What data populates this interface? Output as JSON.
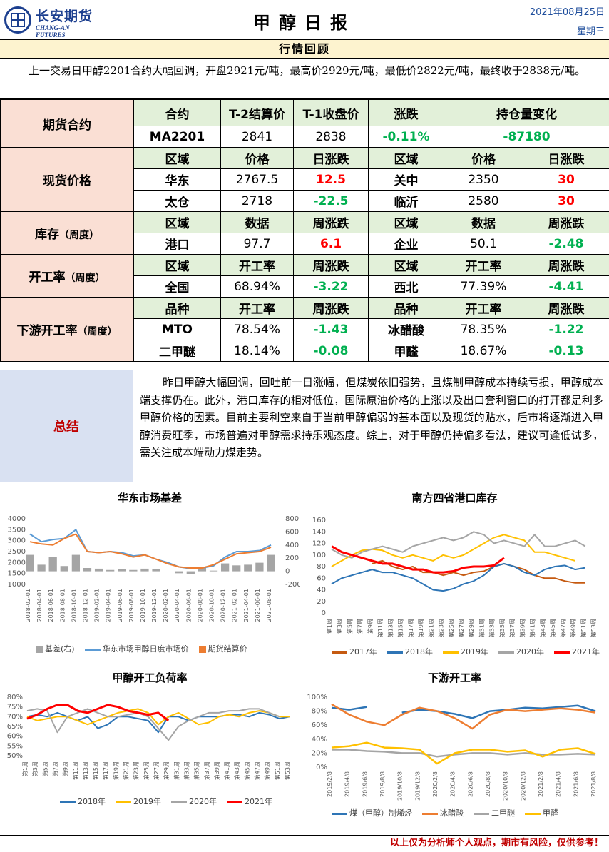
{
  "header": {
    "company_cn": "长安期货",
    "company_en": "CHANG-AN FUTURES",
    "title": "甲醇日报",
    "date": "2021年08月25日",
    "weekday": "星期三"
  },
  "review": {
    "heading": "行情回顾",
    "text": "上一交易日甲醇2201合约大幅回调，开盘2921元/吨，最高价2929元/吨，最低价2822元/吨，最终收于2838元/吨。"
  },
  "futures": {
    "label": "期货合约",
    "headers": [
      "合约",
      "T-2结算价",
      "T-1收盘价",
      "涨跌",
      "持仓量变化"
    ],
    "row": [
      "MA2201",
      "2841",
      "2838",
      "-0.11%",
      "-87180"
    ]
  },
  "spot": {
    "label": "现货价格",
    "headers": [
      "区域",
      "价格",
      "日涨跌",
      "区域",
      "价格",
      "日涨跌"
    ],
    "rows": [
      [
        "华东",
        "2767.5",
        "12.5",
        "关中",
        "2350",
        "30"
      ],
      [
        "太仓",
        "2718",
        "-22.5",
        "临沂",
        "2580",
        "30"
      ]
    ]
  },
  "inventory": {
    "label": "库存",
    "label_small": "（周度）",
    "headers": [
      "区域",
      "数据",
      "周涨跌",
      "区域",
      "数据",
      "周涨跌"
    ],
    "row": [
      "港口",
      "97.7",
      "6.1",
      "企业",
      "50.1",
      "-2.48"
    ]
  },
  "operating": {
    "label": "开工率",
    "label_small": "（周度）",
    "headers": [
      "区域",
      "开工率",
      "周涨跌",
      "区域",
      "开工率",
      "周涨跌"
    ],
    "row": [
      "全国",
      "68.94%",
      "-3.22",
      "西北",
      "77.39%",
      "-4.41"
    ]
  },
  "downstream": {
    "label": "下游开工率",
    "label_small": "（周度）",
    "headers": [
      "品种",
      "开工率",
      "周涨跌",
      "品种",
      "开工率",
      "周涨跌"
    ],
    "rows": [
      [
        "MTO",
        "78.54%",
        "-1.43",
        "冰醋酸",
        "78.35%",
        "-1.22"
      ],
      [
        "二甲醚",
        "18.14%",
        "-0.08",
        "甲醛",
        "18.67%",
        "-0.13"
      ]
    ]
  },
  "summary": {
    "label": "总结",
    "text": "昨日甲醇大幅回调，回吐前一日涨幅，但煤炭依旧强势，且煤制甲醇成本持续亏损，甲醇成本端支撑仍在。此外，港口库存的相对低位，国际原油价格的上涨以及出口套利窗口的打开都是利多甲醇价格的因素。目前主要利空来自于当前甲醇偏弱的基本面以及现货的贴水，后市将逐渐进入甲醇消费旺季，市场普遍对甲醇需求持乐观态度。综上，对于甲醇仍持偏多看法，建议可逢低试多，需关注成本端动力煤走势。"
  },
  "footer": "以上仅为分析师个人观点，期市有风险，仅供参考！",
  "colors": {
    "c2017": "#c55a11",
    "c2018": "#2e75b6",
    "c2019": "#ffc000",
    "c2020": "#a5a5a5",
    "c2021": "#ff0000",
    "basis": "#a5a5a5",
    "spot_line": "#5b9bd5",
    "fut_line": "#ed7d31"
  },
  "chart_data": [
    {
      "type": "line",
      "title": "华东市场基差",
      "yticks_left": [
        "4000",
        "3500",
        "3000",
        "2500",
        "2000",
        "1500",
        "1000"
      ],
      "yticks_right": [
        "800",
        "600",
        "400",
        "200",
        "0",
        "-200"
      ],
      "ylim_left": [
        1000,
        4000
      ],
      "ylim_right": [
        -200,
        800
      ],
      "x": [
        "2018-02-01",
        "2018-04-01",
        "2018-06-01",
        "2018-08-01",
        "2018-10-01",
        "2018-12-01",
        "2019-02-01",
        "2019-04-01",
        "2019-06-01",
        "2019-08-01",
        "2019-10-01",
        "2019-12-01",
        "2020-02-01",
        "2020-04-01",
        "2020-06-01",
        "2020-08-01",
        "2020-10-01",
        "2020-12-01",
        "2021-02-01",
        "2021-04-01",
        "2021-06-01",
        "2021-08-01"
      ],
      "series": [
        {
          "name": "基差(右)",
          "values": [
            250,
            100,
            220,
            80,
            250,
            50,
            40,
            20,
            30,
            20,
            40,
            30,
            0,
            -30,
            -40,
            50,
            10,
            120,
            90,
            100,
            130,
            250
          ]
        },
        {
          "name": "华东市场甲醇日度市场价",
          "values": [
            3300,
            2950,
            3050,
            3100,
            3500,
            2500,
            2450,
            2500,
            2450,
            2300,
            2350,
            2150,
            2000,
            1800,
            1720,
            1750,
            1850,
            2250,
            2500,
            2500,
            2550,
            2800
          ]
        },
        {
          "name": "期货结算价",
          "values": [
            2950,
            2850,
            2800,
            3100,
            3300,
            2500,
            2450,
            2500,
            2400,
            2250,
            2350,
            2150,
            1950,
            1800,
            1750,
            1750,
            1900,
            2150,
            2400,
            2450,
            2500,
            2700
          ]
        }
      ],
      "legend": "bottom"
    },
    {
      "type": "line",
      "title": "南方四省港口库存",
      "yticks": [
        "160",
        "140",
        "120",
        "100",
        "80",
        "60",
        "40",
        "20",
        "0"
      ],
      "ylim": [
        0,
        160
      ],
      "x": [
        "第1周",
        "第3周",
        "第5周",
        "第7周",
        "第9周",
        "第11周",
        "第13周",
        "第15周",
        "第17周",
        "第19周",
        "第21周",
        "第23周",
        "第25周",
        "第27周",
        "第29周",
        "第31周",
        "第33周",
        "第35周",
        "第37周",
        "第39周",
        "第41周",
        "第43周",
        "第45周",
        "第47周",
        "第49周",
        "第51周",
        "第53周"
      ],
      "series": [
        {
          "name": "2017年",
          "values": [
            null,
            null,
            null,
            null,
            85,
            90,
            80,
            75,
            80,
            70,
            70,
            65,
            70,
            65,
            70,
            72,
            80,
            85,
            80,
            75,
            65,
            60,
            60,
            55,
            52,
            52,
            null
          ]
        },
        {
          "name": "2018年",
          "values": [
            50,
            60,
            65,
            70,
            75,
            70,
            70,
            65,
            60,
            50,
            40,
            38,
            42,
            50,
            55,
            65,
            80,
            85,
            80,
            70,
            65,
            75,
            80,
            82,
            75,
            78,
            null
          ]
        },
        {
          "name": "2019年",
          "values": [
            80,
            90,
            100,
            108,
            110,
            108,
            100,
            95,
            100,
            95,
            90,
            100,
            95,
            100,
            110,
            120,
            130,
            135,
            130,
            125,
            105,
            105,
            100,
            95,
            90,
            null,
            null
          ]
        },
        {
          "name": "2020年",
          "values": [
            110,
            100,
            95,
            105,
            110,
            115,
            110,
            105,
            115,
            120,
            125,
            130,
            125,
            130,
            140,
            135,
            120,
            125,
            120,
            115,
            135,
            115,
            115,
            120,
            125,
            115,
            null
          ]
        },
        {
          "name": "2021年",
          "values": [
            115,
            105,
            100,
            95,
            90,
            85,
            85,
            80,
            75,
            75,
            70,
            70,
            72,
            78,
            80,
            80,
            82,
            95,
            null,
            null,
            null,
            null,
            null,
            null,
            null,
            null,
            null
          ]
        }
      ],
      "legend": "bottom"
    },
    {
      "type": "line",
      "title": "甲醇开工负荷率",
      "yticks": [
        "80%",
        "75%",
        "70%",
        "65%",
        "60%",
        "55%",
        "50%"
      ],
      "ylim": [
        50,
        80
      ],
      "x": [
        "第1周",
        "第3周",
        "第5周",
        "第7周",
        "第9周",
        "第11周",
        "第13周",
        "第15周",
        "第17周",
        "第19周",
        "第21周",
        "第23周",
        "第25周",
        "第27周",
        "第29周",
        "第31周",
        "第33周",
        "第35周",
        "第37周",
        "第39周",
        "第41周",
        "第43周",
        "第45周",
        "第47周",
        "第49周",
        "第51周",
        "第53周"
      ],
      "series": [
        {
          "name": "2018年",
          "values": [
            70,
            71,
            70,
            72,
            70,
            68,
            70,
            64,
            66,
            70,
            70,
            69,
            68,
            62,
            70,
            70,
            68,
            70,
            70,
            70,
            71,
            71,
            70,
            72,
            71,
            69,
            70
          ]
        },
        {
          "name": "2019年",
          "values": [
            70,
            68,
            69,
            70,
            70,
            68,
            66,
            68,
            70,
            72,
            73,
            74,
            72,
            66,
            70,
            72,
            69,
            66,
            67,
            70,
            71,
            70,
            72,
            73,
            72,
            70,
            70
          ]
        },
        {
          "name": "2020年",
          "values": [
            73,
            74,
            73,
            62,
            70,
            72,
            74,
            72,
            70,
            70,
            71,
            72,
            70,
            64,
            58,
            65,
            68,
            70,
            72,
            72,
            73,
            73,
            74,
            74,
            72,
            70,
            null
          ]
        },
        {
          "name": "2021年",
          "values": [
            69,
            71,
            74,
            76,
            76,
            73,
            72,
            74,
            76,
            75,
            73,
            72,
            71,
            72,
            68,
            null,
            null,
            null,
            null,
            null,
            null,
            null,
            null,
            null,
            null,
            null,
            null
          ]
        }
      ],
      "legend": "bottom"
    },
    {
      "type": "line",
      "title": "下游开工率",
      "yticks": [
        "100%",
        "80%",
        "60%",
        "40%",
        "20%",
        "0%"
      ],
      "ylim": [
        0,
        100
      ],
      "x": [
        "2019/2/8",
        "2019/4/8",
        "2019/6/8",
        "2019/8/8",
        "2019/10/8",
        "2019/12/8",
        "2020/2/8",
        "2020/4/8",
        "2020/6/8",
        "2020/8/8",
        "2020/10/8",
        "2020/12/8",
        "2021/2/8",
        "2021/4/8",
        "2021/6/8",
        "2021/8/8"
      ],
      "series": [
        {
          "name": "煤（甲醇）制烯烃",
          "values": [
            85,
            82,
            86,
            null,
            78,
            82,
            80,
            76,
            70,
            80,
            82,
            85,
            84,
            86,
            88,
            80
          ]
        },
        {
          "name": "冰醋酸",
          "values": [
            90,
            75,
            65,
            60,
            75,
            85,
            80,
            70,
            55,
            75,
            82,
            80,
            82,
            84,
            82,
            78
          ]
        },
        {
          "name": "二甲醚",
          "values": [
            25,
            25,
            23,
            22,
            20,
            20,
            15,
            18,
            20,
            20,
            18,
            20,
            18,
            18,
            19,
            18
          ]
        },
        {
          "name": "甲醛",
          "values": [
            28,
            30,
            35,
            28,
            27,
            25,
            5,
            20,
            25,
            25,
            22,
            24,
            15,
            25,
            27,
            19
          ]
        }
      ],
      "legend": "bottom"
    }
  ]
}
